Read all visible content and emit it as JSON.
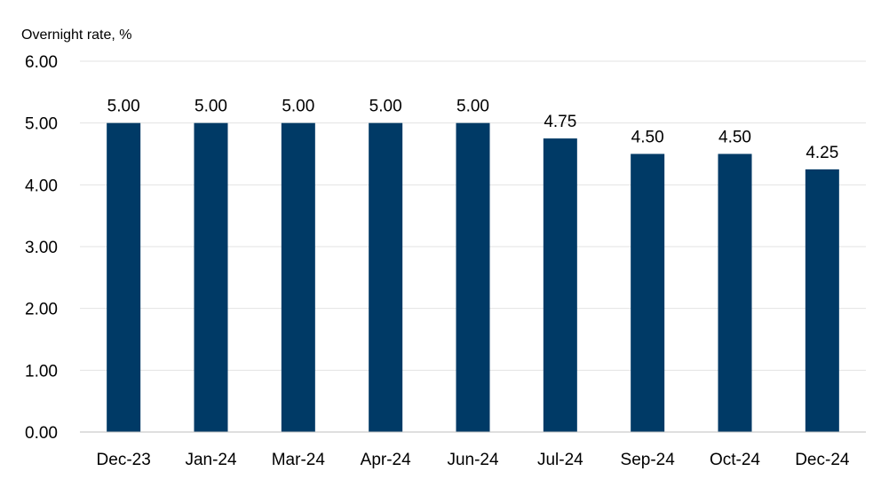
{
  "chart_data": {
    "type": "bar",
    "title": "",
    "ylabel": "Overnight rate, %",
    "xlabel": "",
    "categories": [
      "Dec-23",
      "Jan-24",
      "Mar-24",
      "Apr-24",
      "Jun-24",
      "Jul-24",
      "Sep-24",
      "Oct-24",
      "Dec-24"
    ],
    "values": [
      5.0,
      5.0,
      5.0,
      5.0,
      5.0,
      4.75,
      4.5,
      4.5,
      4.25
    ],
    "data_labels": [
      "5.00",
      "5.00",
      "5.00",
      "5.00",
      "5.00",
      "4.75",
      "4.50",
      "4.50",
      "4.25"
    ],
    "ylim": [
      0,
      6
    ],
    "yticks": [
      "0.00",
      "1.00",
      "2.00",
      "3.00",
      "4.00",
      "5.00",
      "6.00"
    ],
    "grid": true,
    "legend": "none",
    "bar_color": "#003A66",
    "grid_color": "#E3E3E3"
  }
}
